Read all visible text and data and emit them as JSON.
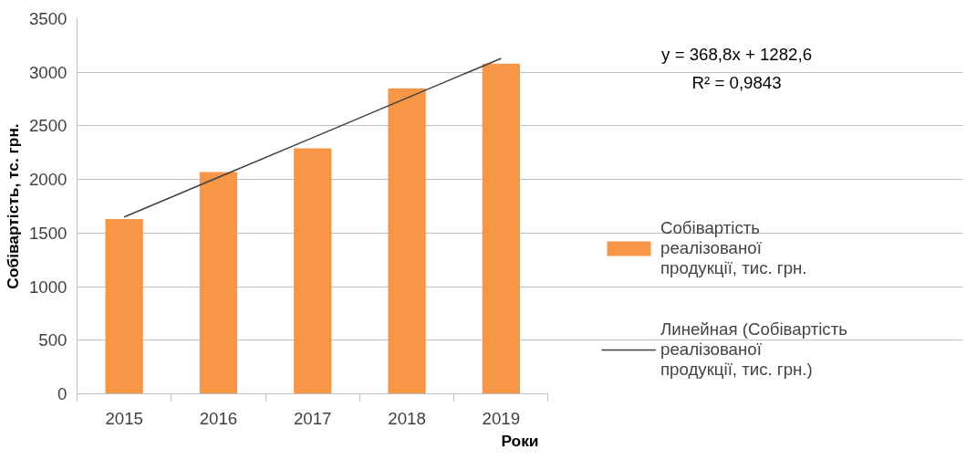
{
  "chart_data": {
    "type": "bar",
    "xlabel": "Роки",
    "ylabel": "Собівартість, тс. грн.",
    "categories": [
      "2015",
      "2016",
      "2017",
      "2018",
      "2019"
    ],
    "series": [
      {
        "name": "Собівартість реалізованої продукції, тис. грн.",
        "color": "#f79646",
        "values": [
          1630,
          2070,
          2290,
          2850,
          3080
        ]
      },
      {
        "name": "Линейная (Собівартість реалізованої продукції, тис. грн.)",
        "type": "line",
        "color": "#404040",
        "values": [
          1650,
          2020,
          2390,
          2760,
          3130
        ]
      }
    ],
    "annotations": [
      "y = 368,8x + 1282,6",
      "R² = 0,9843"
    ],
    "ylim": [
      0,
      3500
    ],
    "yticks": [
      0,
      500,
      1000,
      1500,
      2000,
      2500,
      3000,
      3500
    ],
    "grid": "y",
    "legend": "right"
  }
}
